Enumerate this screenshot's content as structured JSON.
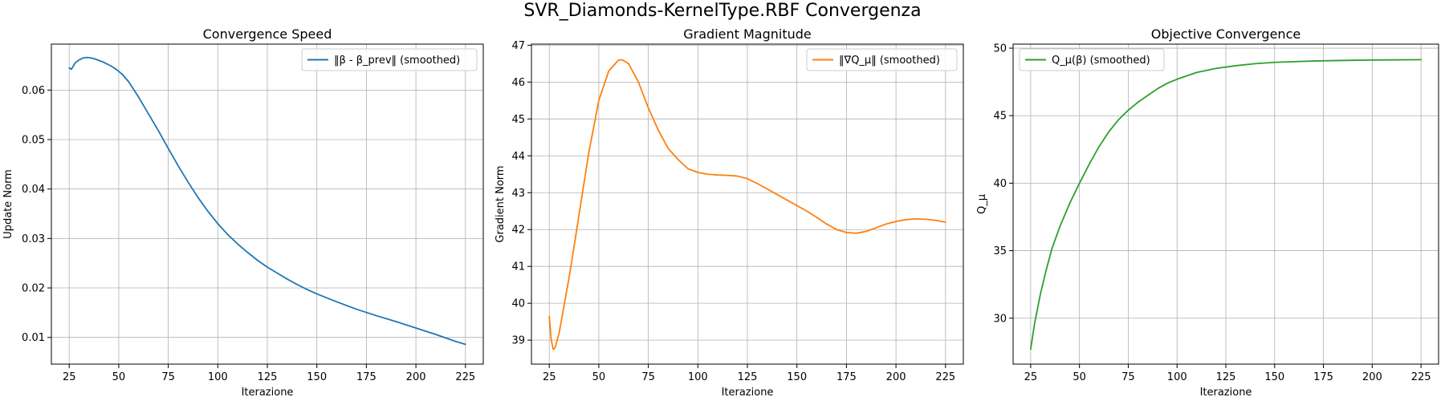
{
  "figure": {
    "title": "SVR_Diamonds-KernelType.RBF Convergenza"
  },
  "chart_data": [
    {
      "type": "line",
      "title": "Convergence Speed",
      "xlabel": "Iterazione",
      "ylabel": "Update Norm",
      "xlim": [
        16,
        234
      ],
      "ylim": [
        0.0046,
        0.0693
      ],
      "xticks": [
        25,
        50,
        75,
        100,
        125,
        150,
        175,
        200,
        225
      ],
      "yticks": [
        0.01,
        0.02,
        0.03,
        0.04,
        0.05,
        0.06
      ],
      "ytick_labels": [
        "0.01",
        "0.02",
        "0.03",
        "0.04",
        "0.05",
        "0.06"
      ],
      "grid": true,
      "legend": "top-right",
      "series": [
        {
          "name": "‖β - β_prev‖ (smoothed)",
          "color": "#1f77b4",
          "x": [
            25,
            26,
            27,
            28,
            30,
            32,
            34,
            36,
            38,
            40,
            42,
            44,
            46,
            48,
            50,
            52,
            55,
            60,
            65,
            70,
            75,
            80,
            85,
            90,
            95,
            100,
            105,
            110,
            115,
            120,
            125,
            130,
            135,
            140,
            145,
            150,
            160,
            170,
            180,
            190,
            200,
            210,
            220,
            225
          ],
          "y": [
            0.0645,
            0.0642,
            0.0648,
            0.0655,
            0.0661,
            0.0665,
            0.0666,
            0.0665,
            0.0663,
            0.066,
            0.0657,
            0.0653,
            0.0649,
            0.0644,
            0.0638,
            0.0631,
            0.0617,
            0.0586,
            0.0552,
            0.0518,
            0.0482,
            0.0447,
            0.0414,
            0.0383,
            0.0355,
            0.033,
            0.0308,
            0.0289,
            0.0272,
            0.0256,
            0.0242,
            0.023,
            0.0218,
            0.0207,
            0.0197,
            0.0188,
            0.0172,
            0.0157,
            0.0144,
            0.0132,
            0.0119,
            0.0106,
            0.0092,
            0.0086
          ]
        }
      ]
    },
    {
      "type": "line",
      "title": "Gradient Magnitude",
      "xlabel": "Iterazione",
      "ylabel": "Gradient Norm",
      "xlim": [
        16,
        234
      ],
      "ylim": [
        38.35,
        47.03
      ],
      "xticks": [
        25,
        50,
        75,
        100,
        125,
        150,
        175,
        200,
        225
      ],
      "yticks": [
        39,
        40,
        41,
        42,
        43,
        44,
        45,
        46,
        47
      ],
      "ytick_labels": [
        "39",
        "40",
        "41",
        "42",
        "43",
        "44",
        "45",
        "46",
        "47"
      ],
      "grid": true,
      "legend": "top-right",
      "series": [
        {
          "name": "‖∇Q_μ‖ (smoothed)",
          "color": "#ff7f0e",
          "x": [
            25,
            26,
            27,
            28,
            30,
            32,
            35,
            38,
            40,
            45,
            50,
            55,
            60,
            62,
            65,
            70,
            75,
            80,
            85,
            90,
            95,
            100,
            105,
            110,
            115,
            120,
            125,
            130,
            135,
            140,
            145,
            150,
            155,
            160,
            165,
            170,
            175,
            180,
            185,
            190,
            195,
            200,
            205,
            210,
            215,
            220,
            225
          ],
          "y": [
            39.65,
            39.0,
            38.75,
            38.8,
            39.2,
            39.8,
            40.7,
            41.7,
            42.4,
            44.1,
            45.5,
            46.3,
            46.6,
            46.6,
            46.5,
            46.0,
            45.3,
            44.7,
            44.2,
            43.9,
            43.65,
            43.55,
            43.5,
            43.48,
            43.47,
            43.45,
            43.38,
            43.25,
            43.1,
            42.95,
            42.8,
            42.65,
            42.5,
            42.33,
            42.15,
            42.0,
            41.92,
            41.9,
            41.95,
            42.05,
            42.15,
            42.22,
            42.27,
            42.29,
            42.28,
            42.25,
            42.2
          ]
        }
      ]
    },
    {
      "type": "line",
      "title": "Objective Convergence",
      "xlabel": "Iterazione",
      "ylabel": "Q_μ",
      "xlim": [
        16,
        234
      ],
      "ylim": [
        26.6,
        50.3
      ],
      "xticks": [
        25,
        50,
        75,
        100,
        125,
        150,
        175,
        200,
        225
      ],
      "yticks": [
        30,
        35,
        40,
        45,
        50
      ],
      "ytick_labels": [
        "30",
        "35",
        "40",
        "45",
        "50"
      ],
      "grid": true,
      "legend": "top-left",
      "series": [
        {
          "name": "Q_μ(β) (smoothed)",
          "color": "#2ca02c",
          "x": [
            25,
            27,
            30,
            33,
            36,
            40,
            45,
            50,
            55,
            60,
            65,
            70,
            75,
            80,
            85,
            90,
            95,
            100,
            110,
            120,
            130,
            140,
            150,
            160,
            170,
            180,
            190,
            200,
            210,
            220,
            225
          ],
          "y": [
            27.7,
            29.6,
            31.8,
            33.6,
            35.2,
            36.8,
            38.5,
            40.0,
            41.4,
            42.7,
            43.8,
            44.7,
            45.4,
            46.0,
            46.5,
            47.0,
            47.4,
            47.7,
            48.2,
            48.5,
            48.7,
            48.85,
            48.95,
            49.0,
            49.05,
            49.08,
            49.1,
            49.12,
            49.13,
            49.14,
            49.15
          ]
        }
      ]
    }
  ]
}
